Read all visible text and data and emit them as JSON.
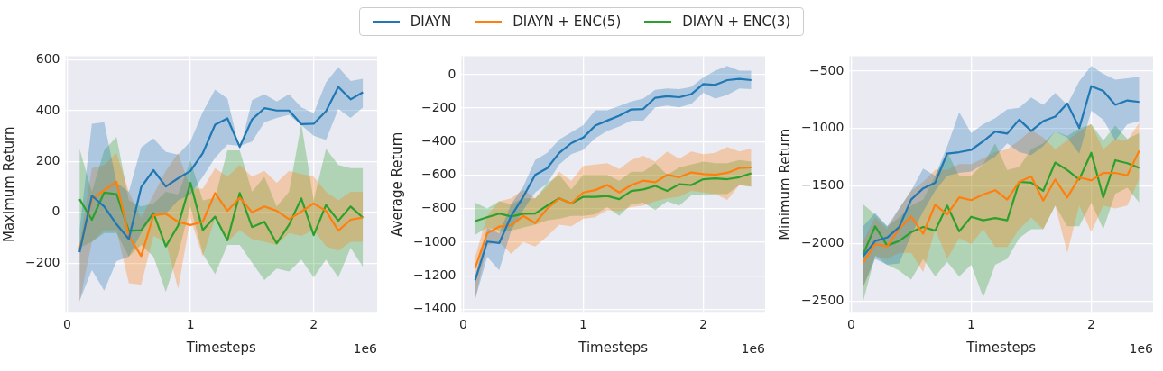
{
  "chart_data": [
    {
      "type": "line",
      "xlabel": "Timesteps",
      "ylabel": "Maximum Return",
      "legend": "top",
      "grid": true,
      "annotations": [
        "1e6"
      ],
      "x": [
        0.1,
        0.2,
        0.3,
        0.4,
        0.5,
        0.6,
        0.7,
        0.8,
        0.9,
        1.0,
        1.1,
        1.2,
        1.3,
        1.4,
        1.5,
        1.6,
        1.7,
        1.8,
        1.9,
        2.0,
        2.1,
        2.2,
        2.3,
        2.4
      ],
      "xlim": [
        -0.015,
        2.515
      ],
      "xticks": [
        0,
        1,
        2
      ],
      "ylim": [
        -395,
        615
      ],
      "yticks": [
        {
          "value": -200,
          "label": "−200"
        },
        0,
        200,
        400,
        600
      ],
      "series": [
        {
          "name": "DIAYN",
          "color": "#1f77b4",
          "values": [
            -157,
            66,
            23,
            -47,
            -105,
            99,
            166,
            102,
            134,
            163,
            233,
            345,
            370,
            258,
            366,
            410,
            401,
            401,
            347,
            349,
            398,
            494,
            445,
            473
          ],
          "upper": [
            -70,
            349,
            355,
            116,
            81,
            256,
            291,
            238,
            227,
            279,
            395,
            483,
            448,
            244,
            442,
            465,
            436,
            465,
            413,
            390,
            512,
            572,
            517,
            526
          ],
          "lower": [
            -349,
            -227,
            -308,
            -192,
            -174,
            -81,
            -12,
            -6,
            47,
            70,
            140,
            215,
            267,
            262,
            279,
            355,
            372,
            384,
            343,
            302,
            285,
            407,
            372,
            413
          ]
        },
        {
          "name": "DIAYN + ENC(5)",
          "color": "#ff7f0e",
          "values": [
            -145,
            52,
            87,
            120,
            -93,
            -172,
            -12,
            -6,
            -37,
            -50,
            -37,
            76,
            6,
            58,
            0,
            23,
            6,
            -27,
            3,
            35,
            6,
            -72,
            -29,
            -20
          ],
          "upper": [
            -128,
            174,
            186,
            233,
            81,
            -23,
            70,
            163,
            233,
            93,
            93,
            174,
            140,
            186,
            140,
            163,
            116,
            163,
            151,
            140,
            81,
            47,
            81,
            81
          ],
          "lower": [
            -355,
            -116,
            -70,
            -70,
            -279,
            -285,
            -93,
            -116,
            -302,
            -23,
            -174,
            -23,
            -116,
            -70,
            -105,
            -116,
            -128,
            -81,
            -93,
            -70,
            -134,
            -151,
            -116,
            -116
          ]
        },
        {
          "name": "DIAYN + ENC(3)",
          "color": "#2ca02c",
          "values": [
            52,
            -29,
            78,
            72,
            -73,
            -70,
            -3,
            -134,
            -52,
            116,
            -70,
            -17,
            -110,
            76,
            -58,
            -37,
            -122,
            -49,
            55,
            -90,
            29,
            -33,
            23,
            -21
          ],
          "upper": [
            250,
            81,
            244,
            297,
            47,
            23,
            35,
            81,
            70,
            203,
            47,
            58,
            244,
            244,
            81,
            140,
            23,
            81,
            349,
            47,
            250,
            186,
            174,
            174
          ],
          "lower": [
            -140,
            -116,
            -81,
            -81,
            -174,
            -128,
            -174,
            -314,
            -163,
            23,
            -163,
            -244,
            -128,
            -128,
            -198,
            -267,
            -221,
            -233,
            -186,
            -256,
            -186,
            -256,
            -140,
            -215
          ]
        }
      ]
    },
    {
      "type": "line",
      "xlabel": "Timesteps",
      "ylabel": "Average Return",
      "grid": true,
      "annotations": [
        "1e6"
      ],
      "x": [
        0.1,
        0.2,
        0.3,
        0.4,
        0.5,
        0.6,
        0.7,
        0.8,
        0.9,
        1.0,
        1.1,
        1.2,
        1.3,
        1.4,
        1.5,
        1.6,
        1.7,
        1.8,
        1.9,
        2.0,
        2.1,
        2.2,
        2.3,
        2.4
      ],
      "xlim": [
        -0.015,
        2.515
      ],
      "xticks": [
        0,
        1,
        2
      ],
      "ylim": [
        -1420,
        110
      ],
      "yticks": [
        {
          "value": -1400,
          "label": "−1400"
        },
        {
          "value": -1200,
          "label": "−1200"
        },
        {
          "value": -1000,
          "label": "−1000"
        },
        {
          "value": -800,
          "label": "−800"
        },
        {
          "value": -600,
          "label": "−600"
        },
        {
          "value": -400,
          "label": "−400"
        },
        {
          "value": -200,
          "label": "−200"
        },
        0
      ],
      "series": [
        {
          "color": "#1f77b4",
          "values": [
            -1227,
            -996,
            -1005,
            -843,
            -729,
            -598,
            -558,
            -467,
            -409,
            -376,
            -304,
            -274,
            -245,
            -208,
            -205,
            -138,
            -129,
            -135,
            -117,
            -56,
            -61,
            -33,
            -26,
            -33
          ],
          "upper": [
            -1209,
            -912,
            -947,
            -773,
            -668,
            -510,
            -467,
            -388,
            -344,
            -301,
            -213,
            -213,
            -187,
            -161,
            -143,
            -91,
            -82,
            -87,
            -73,
            -17,
            23,
            52,
            23,
            23
          ],
          "lower": [
            -1341,
            -1087,
            -1166,
            -930,
            -808,
            -703,
            -650,
            -537,
            -475,
            -449,
            -379,
            -336,
            -309,
            -274,
            -274,
            -196,
            -184,
            -196,
            -175,
            -108,
            -143,
            -122,
            -82,
            -87
          ]
        },
        {
          "color": "#ff7f0e",
          "values": [
            -1154,
            -947,
            -907,
            -898,
            -843,
            -886,
            -799,
            -738,
            -769,
            -703,
            -689,
            -659,
            -703,
            -659,
            -633,
            -642,
            -598,
            -612,
            -584,
            -594,
            -598,
            -586,
            -558,
            -554
          ],
          "upper": [
            -1087,
            -843,
            -755,
            -738,
            -685,
            -738,
            -668,
            -580,
            -633,
            -545,
            -537,
            -528,
            -563,
            -510,
            -484,
            -519,
            -458,
            -502,
            -458,
            -475,
            -467,
            -432,
            -458,
            -441
          ],
          "lower": [
            -1341,
            -1017,
            -999,
            -1070,
            -999,
            -1026,
            -965,
            -895,
            -904,
            -860,
            -851,
            -808,
            -816,
            -790,
            -781,
            -755,
            -738,
            -729,
            -694,
            -703,
            -712,
            -747,
            -659,
            -668
          ]
        },
        {
          "color": "#2ca02c",
          "values": [
            -874,
            -851,
            -829,
            -846,
            -830,
            -829,
            -781,
            -738,
            -769,
            -729,
            -729,
            -724,
            -743,
            -694,
            -685,
            -664,
            -694,
            -654,
            -659,
            -624,
            -619,
            -624,
            -612,
            -589
          ],
          "upper": [
            -764,
            -799,
            -755,
            -773,
            -738,
            -738,
            -650,
            -598,
            -685,
            -598,
            -598,
            -598,
            -633,
            -580,
            -580,
            -528,
            -598,
            -554,
            -537,
            -519,
            -528,
            -528,
            -510,
            -519
          ],
          "lower": [
            -956,
            -912,
            -930,
            -930,
            -912,
            -895,
            -869,
            -860,
            -843,
            -843,
            -834,
            -790,
            -843,
            -773,
            -764,
            -808,
            -755,
            -781,
            -720,
            -720,
            -712,
            -712,
            -659,
            -668
          ]
        }
      ]
    },
    {
      "type": "line",
      "xlabel": "Timesteps",
      "ylabel": "Minimum Return",
      "grid": true,
      "annotations": [
        "1e6"
      ],
      "x": [
        0.1,
        0.2,
        0.3,
        0.4,
        0.5,
        0.6,
        0.7,
        0.8,
        0.9,
        1.0,
        1.1,
        1.2,
        1.3,
        1.4,
        1.5,
        1.6,
        1.7,
        1.8,
        1.9,
        2.0,
        2.1,
        2.2,
        2.3,
        2.4
      ],
      "xlim": [
        -0.015,
        2.515
      ],
      "xticks": [
        0,
        1,
        2
      ],
      "ylim": [
        -2600,
        -370
      ],
      "yticks": [
        {
          "value": -2500,
          "label": "−2500"
        },
        {
          "value": -2000,
          "label": "−2000"
        },
        {
          "value": -1500,
          "label": "−1500"
        },
        {
          "value": -1000,
          "label": "−1000"
        },
        {
          "value": -500,
          "label": "−500"
        }
      ],
      "series": [
        {
          "color": "#1f77b4",
          "values": [
            -2111,
            -1977,
            -1947,
            -1856,
            -1617,
            -1519,
            -1470,
            -1218,
            -1205,
            -1185,
            -1110,
            -1025,
            -1043,
            -922,
            -1020,
            -935,
            -896,
            -781,
            -994,
            -631,
            -672,
            -793,
            -755,
            -768
          ],
          "upper": [
            -1849,
            -1733,
            -1849,
            -1694,
            -1540,
            -1347,
            -1411,
            -1154,
            -858,
            -1038,
            -961,
            -909,
            -832,
            -819,
            -729,
            -793,
            -690,
            -793,
            -588,
            -454,
            -523,
            -575,
            -562,
            -549
          ],
          "lower": [
            -2376,
            -2132,
            -2183,
            -2171,
            -1926,
            -1720,
            -1540,
            -1411,
            -1385,
            -1373,
            -1308,
            -1244,
            -1128,
            -1205,
            -1231,
            -1154,
            -1025,
            -1077,
            -1218,
            -845,
            -922,
            -1102,
            -961,
            -935
          ]
        },
        {
          "color": "#ff7f0e",
          "values": [
            -2165,
            -2003,
            -2024,
            -1869,
            -1766,
            -1913,
            -1661,
            -1746,
            -1597,
            -1622,
            -1573,
            -1535,
            -1617,
            -1463,
            -1416,
            -1625,
            -1442,
            -1599,
            -1424,
            -1450,
            -1385,
            -1385,
            -1406,
            -1192
          ],
          "upper": [
            -1977,
            -1772,
            -1875,
            -1694,
            -1540,
            -1463,
            -1360,
            -1360,
            -1308,
            -1308,
            -1257,
            -1205,
            -1180,
            -1102,
            -1012,
            -1077,
            -1180,
            -1102,
            -1025,
            -961,
            -1180,
            -1089,
            -1102,
            -948
          ],
          "lower": [
            -2389,
            -2106,
            -2132,
            -2080,
            -2080,
            -2248,
            -1875,
            -2132,
            -1952,
            -2003,
            -1875,
            -2029,
            -2029,
            -1875,
            -1772,
            -1875,
            -1669,
            -2080,
            -1669,
            -1900,
            -1669,
            -1694,
            -1669,
            -1437
          ]
        },
        {
          "color": "#2ca02c",
          "values": [
            -2093,
            -1849,
            -2016,
            -1977,
            -1900,
            -1854,
            -1887,
            -1669,
            -1893,
            -1766,
            -1797,
            -1777,
            -1797,
            -1463,
            -1470,
            -1540,
            -1295,
            -1360,
            -1442,
            -1210,
            -1597,
            -1275,
            -1301,
            -1342
          ],
          "upper": [
            -1656,
            -1746,
            -1849,
            -1772,
            -1669,
            -1617,
            -1411,
            -1205,
            -1411,
            -1411,
            -1308,
            -1128,
            -1360,
            -1334,
            -1180,
            -1128,
            -1025,
            -1064,
            -999,
            -961,
            -1102,
            -974,
            -1089,
            -1038
          ],
          "lower": [
            -2505,
            -2106,
            -2183,
            -2235,
            -2312,
            -2132,
            -2286,
            -2158,
            -2286,
            -2183,
            -2467,
            -2183,
            -2132,
            -1952,
            -1875,
            -1875,
            -1669,
            -1849,
            -1849,
            -1643,
            -1875,
            -1566,
            -1514,
            -1643
          ]
        }
      ]
    }
  ]
}
